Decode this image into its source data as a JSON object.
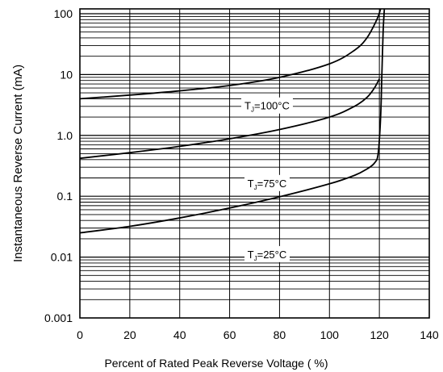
{
  "chart_data": {
    "type": "line",
    "xlabel": "Percent of Rated Peak Reverse Voltage ( %)",
    "ylabel": "Instantaneous Reverse Current (mA)",
    "x_ticks": [
      "0",
      "20",
      "40",
      "60",
      "80",
      "100",
      "120",
      "140"
    ],
    "y_ticks": [
      "0.001",
      "0.01",
      "0.1",
      "1.0",
      "10",
      "100"
    ],
    "xlim": [
      0,
      140
    ],
    "ylim": [
      0.001,
      120
    ],
    "y_scale": "log",
    "grid": true,
    "series": [
      {
        "name": "TJ=100°C",
        "label_parts": {
          "t": "T",
          "sub": "J",
          "rest": "=100°C"
        },
        "label_at": [
          75,
          3.1
        ],
        "x": [
          0,
          20,
          40,
          60,
          80,
          100,
          110,
          115,
          119,
          120.5
        ],
        "y": [
          4.0,
          4.6,
          5.4,
          6.6,
          9.0,
          15,
          25,
          40,
          80,
          120
        ]
      },
      {
        "name": "TJ=75°C",
        "label_parts": {
          "t": "T",
          "sub": "J",
          "rest": "=75°C"
        },
        "label_at": [
          75,
          0.165
        ],
        "x": [
          0,
          20,
          40,
          60,
          80,
          100,
          110,
          115,
          118,
          120
        ],
        "y": [
          0.42,
          0.52,
          0.66,
          0.88,
          1.25,
          2.0,
          3.0,
          4.2,
          6.0,
          8.5
        ]
      },
      {
        "name": "TJ=25°C",
        "label_parts": {
          "t": "T",
          "sub": "J",
          "rest": "=25°C"
        },
        "label_at": [
          75,
          0.0112
        ],
        "x": [
          0,
          20,
          40,
          60,
          80,
          100,
          110,
          115,
          118,
          119.5,
          120.5,
          121,
          121.5,
          122
        ],
        "y": [
          0.025,
          0.032,
          0.044,
          0.064,
          0.098,
          0.16,
          0.22,
          0.28,
          0.35,
          0.5,
          2,
          10,
          50,
          120
        ]
      }
    ]
  }
}
